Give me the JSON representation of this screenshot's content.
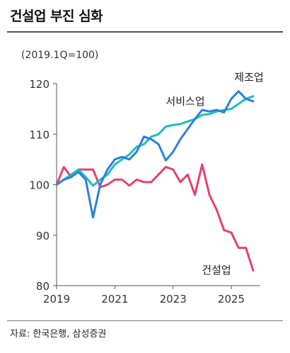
{
  "header": {
    "title": "건설업 부진 심화"
  },
  "footer": {
    "source": "자료: 한국은행, 삼성증권"
  },
  "chart_data": {
    "type": "line",
    "unit_label": "(2019.1Q=100)",
    "xlabel": "",
    "ylabel": "",
    "ylim": [
      80,
      120
    ],
    "xlim": [
      2019.0,
      2025.75
    ],
    "yticks": [
      80,
      90,
      100,
      110,
      120
    ],
    "xticks": [
      2019,
      2021,
      2023,
      2025
    ],
    "grid": false,
    "series": [
      {
        "name": "제조업",
        "color": "#2f7fd9",
        "x": [
          2019.0,
          2019.25,
          2019.5,
          2019.75,
          2020.0,
          2020.25,
          2020.5,
          2020.75,
          2021.0,
          2021.25,
          2021.5,
          2021.75,
          2022.0,
          2022.25,
          2022.5,
          2022.75,
          2023.0,
          2023.25,
          2023.5,
          2023.75,
          2024.0,
          2024.25,
          2024.5,
          2024.75,
          2025.0,
          2025.25,
          2025.5,
          2025.75
        ],
        "values": [
          100.0,
          101.0,
          101.5,
          102.5,
          101.0,
          93.5,
          100.0,
          103.0,
          105.0,
          105.5,
          105.0,
          106.5,
          109.5,
          109.0,
          108.0,
          104.8,
          106.5,
          109.0,
          111.0,
          113.0,
          114.8,
          114.5,
          114.8,
          114.3,
          117.0,
          118.5,
          117.0,
          116.5
        ]
      },
      {
        "name": "서비스업",
        "color": "#1cbfc1",
        "x": [
          2019.0,
          2019.25,
          2019.5,
          2019.75,
          2020.0,
          2020.25,
          2020.5,
          2020.75,
          2021.0,
          2021.25,
          2021.5,
          2021.75,
          2022.0,
          2022.25,
          2022.5,
          2022.75,
          2023.0,
          2023.25,
          2023.5,
          2023.75,
          2024.0,
          2024.25,
          2024.5,
          2024.75,
          2025.0,
          2025.25,
          2025.5,
          2025.75
        ],
        "values": [
          100.0,
          101.0,
          102.0,
          103.0,
          101.5,
          99.8,
          101.0,
          102.0,
          104.0,
          105.0,
          106.0,
          107.5,
          108.0,
          109.5,
          110.0,
          111.5,
          111.8,
          112.0,
          112.5,
          113.0,
          113.8,
          114.0,
          114.5,
          114.8,
          115.0,
          116.0,
          117.0,
          117.5
        ]
      },
      {
        "name": "건설업",
        "color": "#e8406f",
        "x": [
          2019.0,
          2019.25,
          2019.5,
          2019.75,
          2020.0,
          2020.25,
          2020.5,
          2020.75,
          2021.0,
          2021.25,
          2021.5,
          2021.75,
          2022.0,
          2022.25,
          2022.5,
          2022.75,
          2023.0,
          2023.25,
          2023.5,
          2023.75,
          2024.0,
          2024.25,
          2024.5,
          2024.75,
          2025.0,
          2025.25,
          2025.5,
          2025.75
        ],
        "values": [
          100.0,
          103.5,
          101.5,
          103.0,
          103.0,
          103.0,
          99.5,
          100.0,
          101.0,
          101.0,
          99.8,
          101.0,
          100.5,
          100.5,
          102.0,
          103.5,
          103.0,
          100.5,
          102.0,
          98.0,
          104.0,
          98.0,
          95.0,
          91.0,
          90.5,
          87.5,
          87.5,
          83.0
        ]
      }
    ]
  }
}
